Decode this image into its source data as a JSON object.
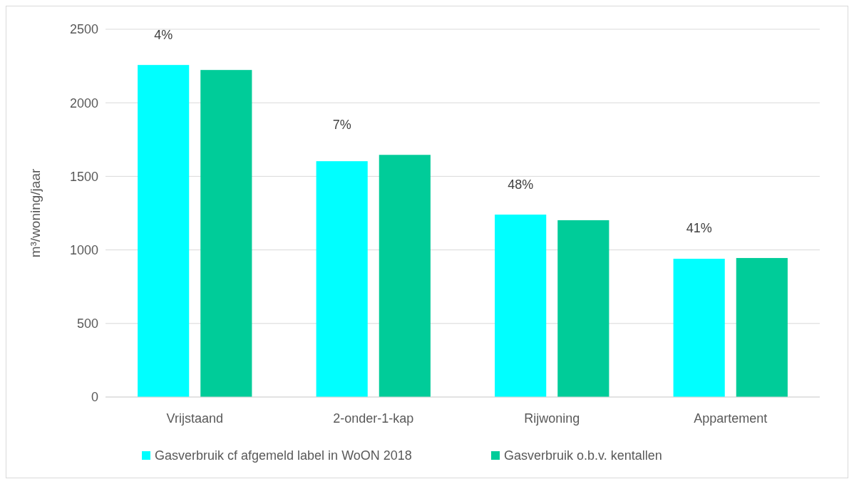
{
  "chart_data": {
    "type": "bar",
    "ylabel": "m³/woning/jaar",
    "categories": [
      "Vrijstaand",
      "2-onder-1-kap",
      "Rijwoning",
      "Appartement"
    ],
    "series": [
      {
        "name": "Gasverbruik cf afgemeld label in WoON 2018",
        "color": "#00ffff",
        "values": [
          2257,
          1603,
          1240,
          940
        ]
      },
      {
        "name": "Gasverbruik o.b.v. kentallen",
        "color": "#00cc99",
        "values": [
          2223,
          1646,
          1202,
          945
        ]
      }
    ],
    "ylim": [
      0,
      2500
    ],
    "yticks": [
      0,
      500,
      1000,
      1500,
      2000,
      2500
    ],
    "grid": "y",
    "legend": "bottom",
    "annotations": [
      "4%",
      "7%",
      "48%",
      "41%"
    ]
  }
}
